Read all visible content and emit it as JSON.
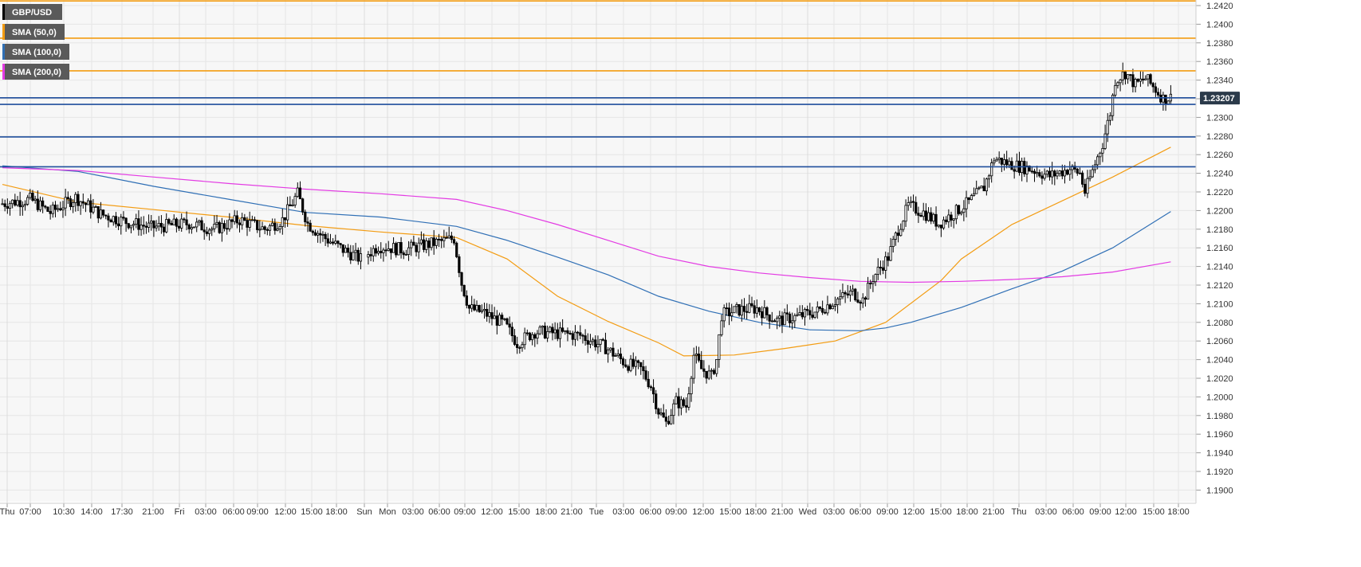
{
  "chart_data": {
    "type": "candlestick",
    "symbol": "GBP/USD",
    "ylim": [
      1.189,
      1.2425
    ],
    "grid": true,
    "legend_placement": "top-left",
    "last_price": "1.23207",
    "y_ticks": [
      "1.2420",
      "1.2400",
      "1.2380",
      "1.2360",
      "1.2340",
      "1.2320",
      "1.2300",
      "1.2280",
      "1.2260",
      "1.2240",
      "1.2220",
      "1.2200",
      "1.2180",
      "1.2160",
      "1.2140",
      "1.2120",
      "1.2100",
      "1.2080",
      "1.2060",
      "1.2040",
      "1.2020",
      "1.2000",
      "1.1980",
      "1.1960",
      "1.1940",
      "1.1920",
      "1.1900"
    ],
    "x_ticks": [
      "Thu",
      "07:00",
      "10:30",
      "14:00",
      "17:30",
      "21:00",
      "Fri",
      "03:00",
      "06:00",
      "09:00",
      "12:00",
      "15:00",
      "18:00",
      "Sun",
      "Mon",
      "03:00",
      "06:00",
      "09:00",
      "12:00",
      "15:00",
      "18:00",
      "21:00",
      "Tue",
      "03:00",
      "06:00",
      "09:00",
      "12:00",
      "15:00",
      "18:00",
      "21:00",
      "Wed",
      "03:00",
      "06:00",
      "09:00",
      "12:00",
      "15:00",
      "18:00",
      "21:00",
      "Thu",
      "03:00",
      "06:00",
      "09:00",
      "12:00",
      "15:00",
      "18:00"
    ],
    "legend": [
      {
        "label": "GBP/USD",
        "color": "#000000"
      },
      {
        "label": "SMA (50,0)",
        "color": "#f39c12"
      },
      {
        "label": "SMA (100,0)",
        "color": "#2f6fb5"
      },
      {
        "label": "SMA (200,0)",
        "color": "#e33be3"
      }
    ],
    "colors": {
      "bull": "#ffffff",
      "bear": "#000000",
      "wick": "#000000",
      "grid": "#e6e6e6",
      "axis": "#cfcfcf",
      "resistance": "#f39c12",
      "support": "#1f4e9c",
      "price_label": "#2b3a4a"
    },
    "resistance_levels": [
      1.2425,
      1.2385,
      1.235
    ],
    "support_levels": [
      1.2321,
      1.2314,
      1.2279,
      1.2247
    ],
    "series": [
      {
        "name": "SMA (50,0)",
        "color": "#f39c12",
        "x": [
          0,
          30,
          60,
          90,
          120,
          150,
          180,
          200,
          220,
          240,
          260,
          270,
          290,
          310,
          330,
          350,
          372,
          380,
          400,
          440,
          463
        ],
        "values": [
          1.2228,
          1.2209,
          1.2201,
          1.2193,
          1.2184,
          1.2177,
          1.2171,
          1.2148,
          1.2108,
          1.2081,
          1.2058,
          1.2044,
          1.2045,
          1.2052,
          1.206,
          1.208,
          1.2125,
          1.2148,
          1.2185,
          1.2236,
          1.2268
        ]
      },
      {
        "name": "SMA (100,0)",
        "color": "#2f6fb5",
        "x": [
          0,
          30,
          60,
          90,
          120,
          150,
          180,
          200,
          220,
          240,
          260,
          280,
          300,
          320,
          340,
          350,
          360,
          380,
          400,
          420,
          440,
          463
        ],
        "values": [
          1.2248,
          1.2242,
          1.2226,
          1.2212,
          1.2198,
          1.2193,
          1.2183,
          1.2168,
          1.215,
          1.2131,
          1.2108,
          1.2092,
          1.208,
          1.2072,
          1.2071,
          1.2074,
          1.208,
          1.2096,
          1.2116,
          1.2135,
          1.216,
          1.2199
        ]
      },
      {
        "name": "SMA (200,0)",
        "color": "#e33be3",
        "x": [
          0,
          30,
          60,
          90,
          120,
          150,
          180,
          200,
          220,
          240,
          260,
          280,
          300,
          320,
          340,
          360,
          380,
          400,
          420,
          440,
          463
        ],
        "values": [
          1.2246,
          1.2243,
          1.2236,
          1.2229,
          1.2223,
          1.2218,
          1.2212,
          1.22,
          1.2185,
          1.2168,
          1.2151,
          1.214,
          1.2133,
          1.2128,
          1.2124,
          1.2123,
          1.2124,
          1.2126,
          1.2129,
          1.2134,
          1.2145
        ]
      }
    ]
  }
}
